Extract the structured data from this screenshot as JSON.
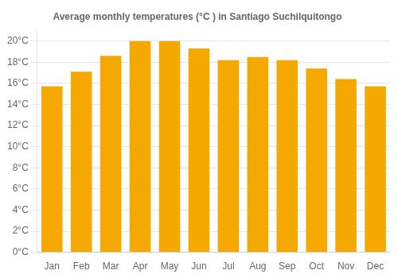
{
  "chart_data": {
    "type": "bar",
    "title": "Average monthly temperatures (°C ) in Santiago Suchilquitongo",
    "categories": [
      "Jan",
      "Feb",
      "Mar",
      "Apr",
      "May",
      "Jun",
      "Jul",
      "Aug",
      "Sep",
      "Oct",
      "Nov",
      "Dec"
    ],
    "values": [
      15.7,
      17.1,
      18.6,
      20.0,
      20.0,
      19.3,
      18.2,
      18.5,
      18.2,
      17.4,
      16.4,
      15.7
    ],
    "color": "#F5A800",
    "ylim": [
      0,
      21
    ],
    "yticks": [
      {
        "value": 0,
        "label": "0°C"
      },
      {
        "value": 2,
        "label": "2°C"
      },
      {
        "value": 4,
        "label": "4°C"
      },
      {
        "value": 6,
        "label": "6°C"
      },
      {
        "value": 8,
        "label": "8°C"
      },
      {
        "value": 10,
        "label": "10°C"
      },
      {
        "value": 12,
        "label": "12°C"
      },
      {
        "value": 14,
        "label": "14°C"
      },
      {
        "value": 16,
        "label": "16°C"
      },
      {
        "value": 18,
        "label": "18°C"
      },
      {
        "value": 20,
        "label": "20°C"
      }
    ],
    "grid": true
  }
}
